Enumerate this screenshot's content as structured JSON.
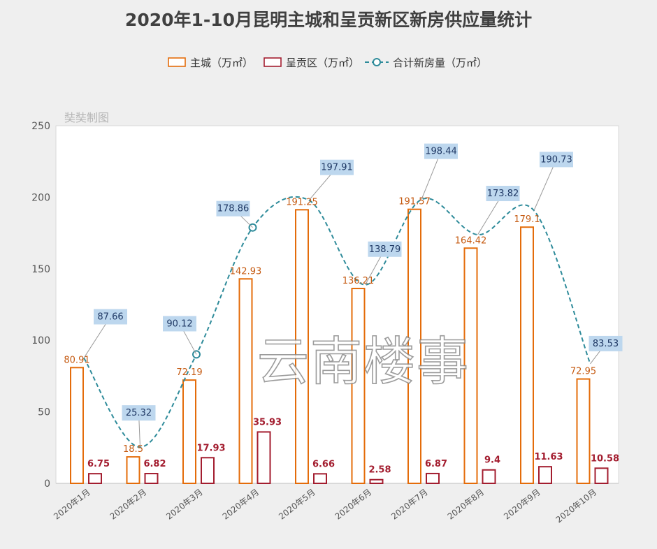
{
  "chart_data": {
    "type": "bar",
    "title": "2020年1-10月昆明主城和呈贡新区新房供应量统计",
    "categories": [
      "2020年1月",
      "2020年2月",
      "2020年3月",
      "2020年4月",
      "2020年5月",
      "2020年6月",
      "2020年7月",
      "2020年8月",
      "2020年9月",
      "2020年10月"
    ],
    "series": [
      {
        "name": "主城（万㎡）",
        "type": "bar",
        "color": "#e46c0a",
        "label_color": "#c55a11",
        "values": [
          80.91,
          18.5,
          72.19,
          142.93,
          191.25,
          136.21,
          191.57,
          164.42,
          179.1,
          72.95
        ],
        "labels": [
          "80.91",
          "18.5",
          "72.19",
          "142.93",
          "191.25",
          "136.21",
          "191.57",
          "164.42",
          "179.1",
          "72.95"
        ]
      },
      {
        "name": "呈贡区（万㎡）",
        "type": "bar",
        "color": "#a31d2f",
        "label_color": "#a31d2f",
        "values": [
          6.75,
          6.82,
          17.93,
          35.93,
          6.66,
          2.58,
          6.87,
          9.4,
          11.63,
          10.58
        ],
        "labels": [
          "6.75",
          "6.82",
          "17.93",
          "35.93",
          "6.66",
          "2.58",
          "6.87",
          "9.4",
          "11.63",
          "10.58"
        ]
      },
      {
        "name": "合计新房量（万㎡）",
        "type": "line",
        "color": "#2e8b9a",
        "label_bg": "#bdd7ee",
        "values": [
          87.66,
          25.32,
          90.12,
          178.86,
          197.91,
          138.79,
          198.44,
          173.82,
          190.73,
          83.53
        ],
        "labels": [
          "87.66",
          "25.32",
          "90.12",
          "178.86",
          "197.91",
          "138.79",
          "198.44",
          "173.82",
          "190.73",
          "83.53"
        ],
        "markers_at": [
          "2020年3月",
          "2020年4月"
        ]
      }
    ],
    "ylim": [
      0,
      250
    ],
    "yticks": [
      0,
      50,
      100,
      150,
      200,
      250
    ],
    "ytick_labels": [
      "0",
      "50",
      "100",
      "150",
      "200",
      "250"
    ],
    "xlabel": "",
    "ylabel": "",
    "legend_position": "top",
    "grid": false,
    "annotation": "奘奘制图",
    "watermark": "云南楼事"
  }
}
